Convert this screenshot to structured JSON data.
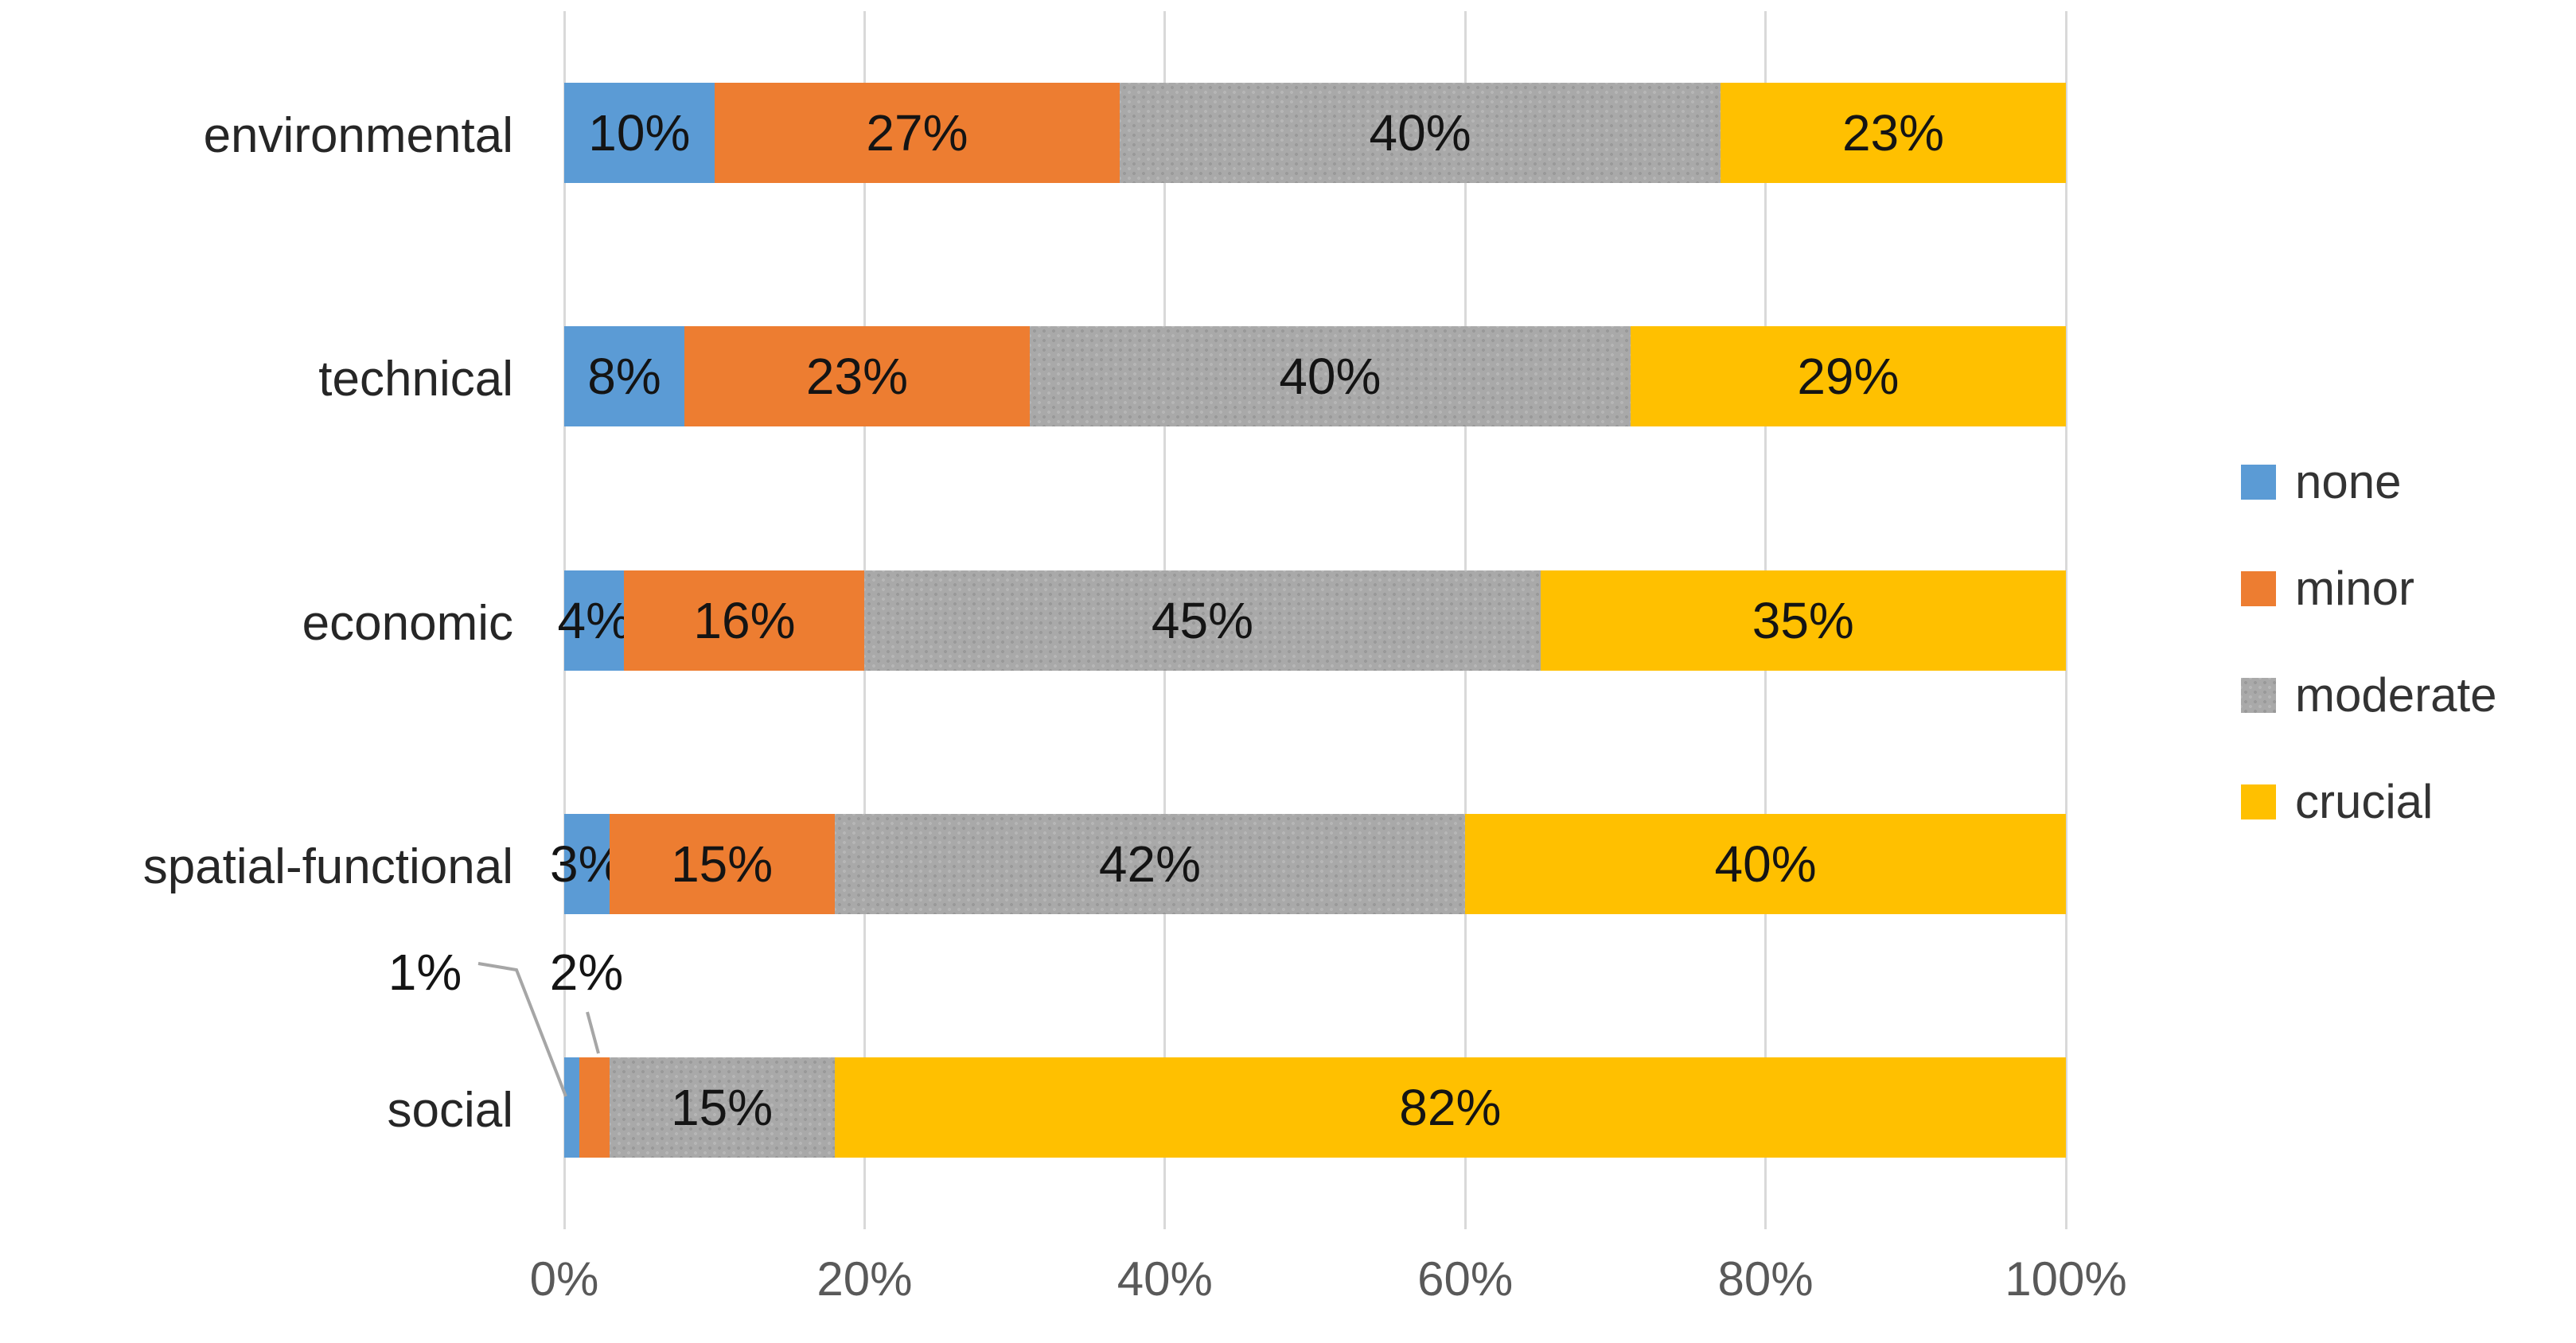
{
  "chart_data": {
    "type": "bar",
    "orientation": "horizontal",
    "stacked": true,
    "title": "",
    "categories": [
      "environmental",
      "technical",
      "economic",
      "spatial-functional",
      "social"
    ],
    "series": [
      {
        "name": "none",
        "color": "#5B9BD5",
        "textured": false,
        "values": [
          10,
          8,
          4,
          3,
          1
        ]
      },
      {
        "name": "minor",
        "color": "#ED7D31",
        "textured": false,
        "values": [
          27,
          23,
          16,
          15,
          2
        ]
      },
      {
        "name": "moderate",
        "color": "#A9A9A9",
        "textured": true,
        "values": [
          40,
          40,
          45,
          42,
          15
        ]
      },
      {
        "name": "crucial",
        "color": "#FFC000",
        "textured": false,
        "values": [
          23,
          29,
          35,
          40,
          82
        ]
      }
    ],
    "data_labels": {
      "visible": true,
      "format": "{value}%",
      "labels_by_row": [
        [
          "10%",
          "27%",
          "40%",
          "23%"
        ],
        [
          "8%",
          "23%",
          "40%",
          "29%"
        ],
        [
          "4%",
          "16%",
          "45%",
          "35%"
        ],
        [
          "3%",
          "15%",
          "42%",
          "40%"
        ],
        [
          "1%",
          "2%",
          "15%",
          "82%"
        ]
      ]
    },
    "callouts": [
      {
        "category": "social",
        "series": "none",
        "label": "1%"
      },
      {
        "category": "social",
        "series": "minor",
        "label": "2%"
      }
    ],
    "x_axis": {
      "min": 0,
      "max": 100,
      "tick_step": 20,
      "tick_labels": [
        "0%",
        "20%",
        "40%",
        "60%",
        "80%",
        "100%"
      ],
      "grid": true
    },
    "legend": {
      "position": "right",
      "entries": [
        "none",
        "minor",
        "moderate",
        "crucial"
      ]
    },
    "colors": {
      "background": "#FFFFFF",
      "gridline": "#D9D9D9",
      "axis_text": "#595959",
      "category_text": "#262626",
      "data_label_text": "#141414",
      "leader_line": "#A6A6A6"
    }
  }
}
